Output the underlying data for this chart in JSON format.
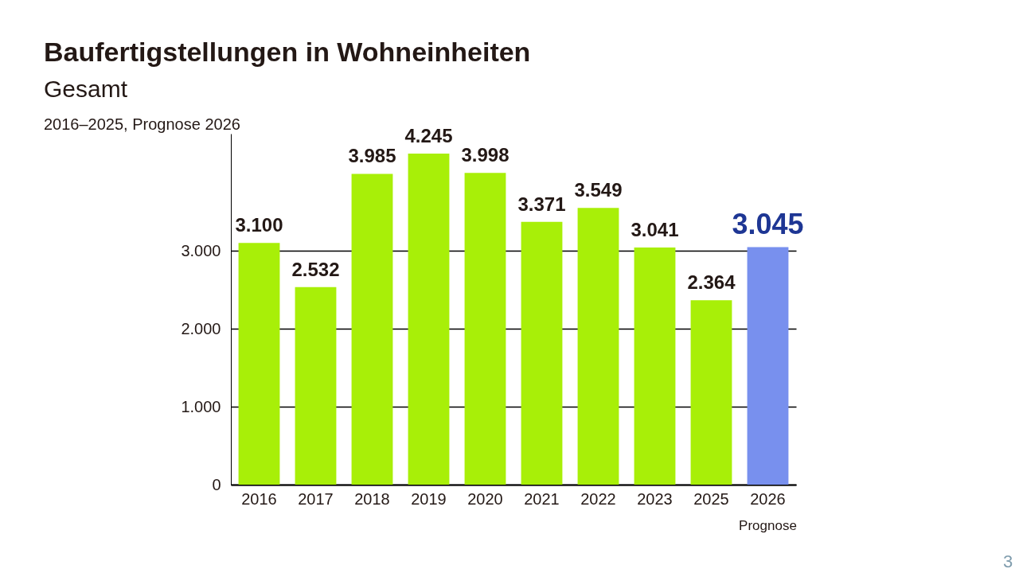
{
  "chart_data": {
    "type": "bar",
    "title": "Baufertigstellungen in Wohneinheiten",
    "subtitle": "Gesamt",
    "categories": [
      "2016",
      "2017",
      "2018",
      "2019",
      "2020",
      "2021",
      "2022",
      "2023",
      "2025",
      "2026"
    ],
    "values": [
      3100,
      2532,
      3985,
      4245,
      3998,
      3371,
      3549,
      3041,
      2364,
      3045
    ],
    "colors": [
      "#a8ef08",
      "#a8ef08",
      "#a8ef08",
      "#a8ef08",
      "#a8ef08",
      "#a8ef08",
      "#a8ef08",
      "#a8ef08",
      "#a8ef08",
      "#7890ee"
    ],
    "value_labels": [
      "3.100",
      "2.532",
      "3.985",
      "4.245",
      "3.998",
      "3.371",
      "3.549",
      "3.041",
      "2.364",
      "3.045"
    ],
    "ylim": [
      0,
      4500
    ],
    "yticks": [
      0,
      {
        "value": 1000,
        "label": "1.000"
      },
      {
        "value": 2000,
        "label": "2.000"
      },
      {
        "value": 3000,
        "label": "3.000"
      }
    ],
    "grid": "y",
    "legend": false,
    "annotations": [
      "2016–2025, Prognose 2026",
      "Prognose",
      "3"
    ]
  }
}
